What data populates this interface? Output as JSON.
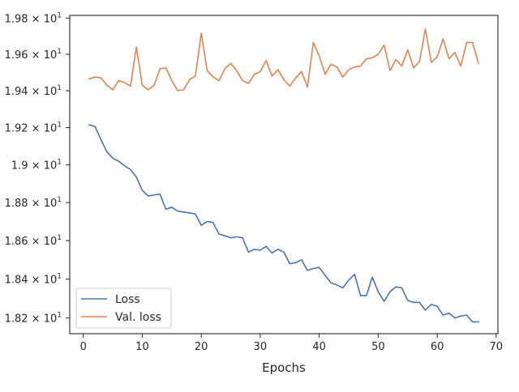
{
  "chart_data": {
    "type": "line",
    "xlabel": "Epochs",
    "ylabel": "",
    "xlim": [
      -2.3,
      70.3
    ],
    "ylim": [
      18.12,
      19.815
    ],
    "y_scale": "log",
    "grid": false,
    "legend_position": "lower-left",
    "x_ticks": [
      0,
      10,
      20,
      30,
      40,
      50,
      60,
      70
    ],
    "x_tick_labels": [
      "0",
      "10",
      "20",
      "30",
      "40",
      "50",
      "60",
      "70"
    ],
    "y_ticks": [
      18.2,
      18.4,
      18.6,
      18.8,
      19.0,
      19.2,
      19.4,
      19.6,
      19.8
    ],
    "y_tick_labels": [
      {
        "mant": "1.82",
        "exp": "1"
      },
      {
        "mant": "1.84",
        "exp": "1"
      },
      {
        "mant": "1.86",
        "exp": "1"
      },
      {
        "mant": "1.88",
        "exp": "1"
      },
      {
        "mant": "1.9",
        "exp": "1"
      },
      {
        "mant": "1.92",
        "exp": "1"
      },
      {
        "mant": "1.94",
        "exp": "1"
      },
      {
        "mant": "1.96",
        "exp": "1"
      },
      {
        "mant": "1.98",
        "exp": "1"
      }
    ],
    "x": [
      1,
      2,
      3,
      4,
      5,
      6,
      7,
      8,
      9,
      10,
      11,
      12,
      13,
      14,
      15,
      16,
      17,
      18,
      19,
      20,
      21,
      22,
      23,
      24,
      25,
      26,
      27,
      28,
      29,
      30,
      31,
      32,
      33,
      34,
      35,
      36,
      37,
      38,
      39,
      40,
      41,
      42,
      43,
      44,
      45,
      46,
      47,
      48,
      49,
      50,
      51,
      52,
      53,
      54,
      55,
      56,
      57,
      58,
      59,
      60,
      61,
      62,
      63,
      64,
      65,
      66,
      67
    ],
    "series": [
      {
        "name": "Loss",
        "color": "#4c72b0",
        "values": [
          19.215,
          19.205,
          19.135,
          19.07,
          19.035,
          19.02,
          18.995,
          18.975,
          18.935,
          18.865,
          18.835,
          18.84,
          18.845,
          18.765,
          18.775,
          18.755,
          18.75,
          18.745,
          18.74,
          18.68,
          18.7,
          18.695,
          18.635,
          18.625,
          18.615,
          18.62,
          18.615,
          18.54,
          18.555,
          18.55,
          18.57,
          18.535,
          18.555,
          18.54,
          18.48,
          18.485,
          18.5,
          18.445,
          18.455,
          18.46,
          18.42,
          18.38,
          18.37,
          18.355,
          18.395,
          18.425,
          18.315,
          18.315,
          18.41,
          18.335,
          18.285,
          18.335,
          18.36,
          18.355,
          18.29,
          18.28,
          18.28,
          18.24,
          18.27,
          18.26,
          18.215,
          18.225,
          18.2,
          18.21,
          18.215,
          18.18,
          18.18
        ]
      },
      {
        "name": "Val. loss",
        "color": "#dd8452",
        "values": [
          19.465,
          19.475,
          19.47,
          19.43,
          19.405,
          19.455,
          19.445,
          19.425,
          19.64,
          19.43,
          19.405,
          19.43,
          19.52,
          19.525,
          19.455,
          19.4,
          19.405,
          19.46,
          19.48,
          19.715,
          19.51,
          19.475,
          19.455,
          19.52,
          19.55,
          19.51,
          19.455,
          19.44,
          19.49,
          19.505,
          19.565,
          19.48,
          19.515,
          19.46,
          19.425,
          19.47,
          19.505,
          19.42,
          19.665,
          19.59,
          19.49,
          19.545,
          19.53,
          19.475,
          19.515,
          19.53,
          19.535,
          19.575,
          19.58,
          19.6,
          19.65,
          19.51,
          19.57,
          19.535,
          19.625,
          19.525,
          19.56,
          19.74,
          19.555,
          19.585,
          19.685,
          19.575,
          19.61,
          19.535,
          19.665,
          19.665,
          19.55
        ]
      }
    ]
  }
}
